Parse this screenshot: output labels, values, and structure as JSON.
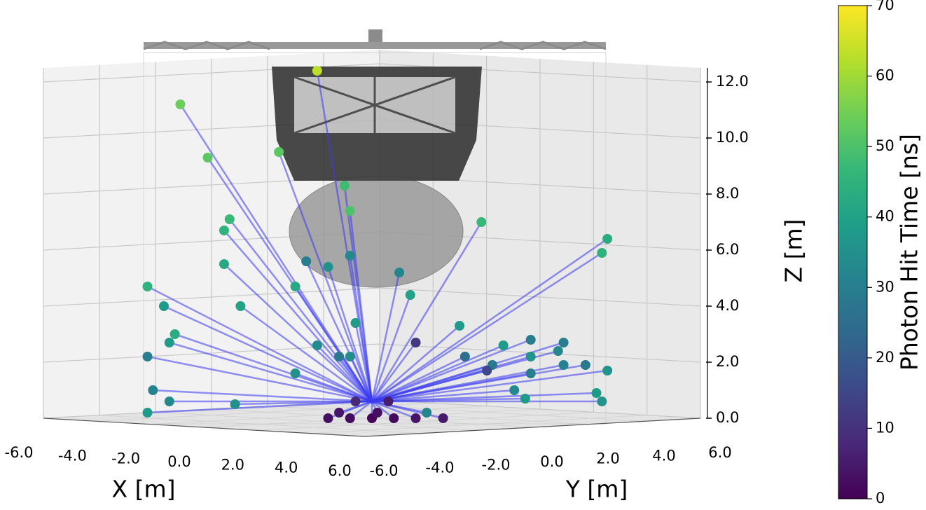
{
  "chart_data": {
    "type": "scatter3d",
    "xlabel": "X [m]",
    "ylabel": "Y [m]",
    "zlabel": "Z [m]",
    "xlim": [
      -6,
      6
    ],
    "ylim": [
      -6,
      6
    ],
    "zlim": [
      0,
      12.5
    ],
    "xticks": [
      {
        "value": -6,
        "label": "-6.0"
      },
      {
        "value": -4,
        "label": "-4.0"
      },
      {
        "value": -2,
        "label": "-2.0"
      },
      {
        "value": 0,
        "label": "0.0"
      },
      {
        "value": 2,
        "label": "2.0"
      },
      {
        "value": 4,
        "label": "4.0"
      },
      {
        "value": 6,
        "label": "6.0"
      }
    ],
    "yticks": [
      {
        "value": -6,
        "label": "-6.0"
      },
      {
        "value": -4,
        "label": "-4.0"
      },
      {
        "value": -2,
        "label": "-2.0"
      },
      {
        "value": 0,
        "label": "0.0"
      },
      {
        "value": 2,
        "label": "2.0"
      },
      {
        "value": 4,
        "label": "4.0"
      },
      {
        "value": 6,
        "label": "6.0"
      }
    ],
    "zticks": [
      {
        "value": 0,
        "label": "0.0"
      },
      {
        "value": 2,
        "label": "2.0"
      },
      {
        "value": 4,
        "label": "4.0"
      },
      {
        "value": 6,
        "label": "6.0"
      },
      {
        "value": 8,
        "label": "8.0"
      },
      {
        "value": 10,
        "label": "10.0"
      },
      {
        "value": 12,
        "label": "12.0"
      }
    ],
    "grid": true,
    "colormap": "viridis",
    "clim": [
      0,
      70
    ],
    "cticks": [
      0,
      10,
      20,
      30,
      40,
      50,
      60,
      70
    ],
    "clabel": "Photon Hit Time [ns]",
    "source": {
      "x": 0,
      "y": 0,
      "z": 0.6
    },
    "path_color": "#3a3af0",
    "points": {
      "x": [
        -1.0,
        -3.5,
        -3.0,
        -1.7,
        -0.5,
        -0.4,
        -2.6,
        -2.7,
        2.0,
        4.3,
        4.2,
        -4.1,
        -3.8,
        -2.7,
        -2.4,
        -1.2,
        -0.8,
        -0.4,
        0.5,
        0.7,
        -1.4,
        -0.3,
        0.8,
        1.6,
        -3.6,
        -3.7,
        -1.0,
        -0.6,
        -0.4,
        -4.1,
        -1.4,
        -4.0,
        -3.7,
        -4.1,
        -2.5,
        1.7,
        2.2,
        2.1,
        2.4,
        2.9,
        3.4,
        3.5,
        2.9,
        2.9,
        3.5,
        3.9,
        4.3,
        2.6,
        2.8,
        4.1,
        4.2,
        1.0,
        -0.3,
        0.3,
        -0.8,
        -0.4,
        0,
        0.4,
        0.8,
        1.3,
        0.1,
        -0.6
      ],
      "y": [
        -1.0,
        -3.5,
        -3.0,
        -1.7,
        -0.5,
        -0.4,
        -2.6,
        -2.7,
        2.0,
        4.3,
        4.2,
        -4.1,
        -3.8,
        -2.7,
        -2.4,
        -1.2,
        -0.8,
        -0.4,
        0.5,
        0.7,
        -1.4,
        -0.3,
        0.8,
        1.6,
        -3.6,
        -3.7,
        -1.0,
        -0.6,
        -0.4,
        -4.1,
        -1.4,
        -4.0,
        -3.7,
        -4.1,
        -2.5,
        1.7,
        2.2,
        2.1,
        2.4,
        2.9,
        3.4,
        3.5,
        2.9,
        2.9,
        3.5,
        3.9,
        4.3,
        2.6,
        2.8,
        4.1,
        4.2,
        1.0,
        -0.3,
        0.3,
        -0.8,
        -0.4,
        0,
        0.4,
        0.8,
        1.3,
        0.1,
        -0.6
      ],
      "z": [
        12.4,
        11.2,
        9.3,
        9.5,
        8.3,
        7.4,
        7.1,
        6.7,
        7.0,
        6.4,
        5.9,
        4.7,
        4.0,
        5.5,
        4.0,
        5.6,
        5.4,
        5.8,
        5.2,
        4.4,
        4.7,
        3.4,
        2.7,
        3.3,
        3.0,
        2.7,
        2.6,
        2.2,
        2.2,
        2.2,
        1.6,
        1.0,
        0.6,
        0.2,
        0.5,
        2.2,
        1.9,
        1.7,
        2.6,
        2.8,
        2.4,
        2.7,
        2.2,
        1.6,
        1.9,
        1.9,
        1.7,
        1.0,
        0.7,
        0.9,
        0.6,
        0.2,
        0.6,
        0.6,
        0,
        0,
        0,
        0,
        0,
        0,
        0.2,
        0.2
      ],
      "t": [
        63,
        54,
        52,
        52,
        48,
        50,
        47,
        45,
        47,
        43,
        45,
        45,
        38,
        42,
        40,
        30,
        35,
        33,
        32,
        40,
        42,
        38,
        12,
        38,
        43,
        38,
        34,
        28,
        34,
        30,
        35,
        31,
        33,
        38,
        35,
        25,
        28,
        15,
        38,
        30,
        33,
        30,
        36,
        30,
        31,
        28,
        36,
        33,
        38,
        38,
        36,
        32,
        8,
        6,
        3,
        2,
        1,
        2,
        4,
        5,
        3,
        4
      ]
    }
  }
}
